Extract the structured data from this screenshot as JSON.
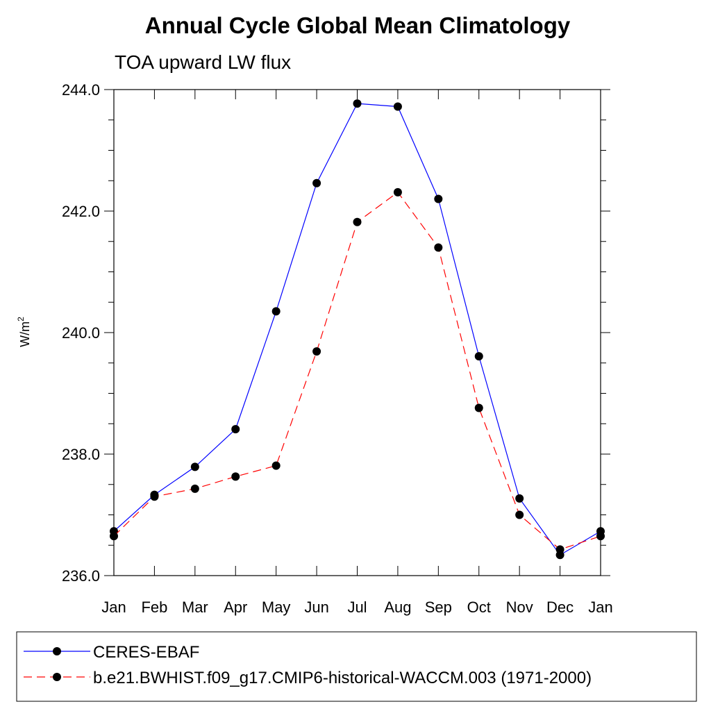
{
  "chart_data": {
    "type": "line",
    "title": "Annual Cycle Global Mean Climatology",
    "subtitle": "TOA upward LW flux",
    "ylabel_main": "W/m",
    "ylabel_sup": "2",
    "xlabel": "",
    "ylim": [
      236.0,
      244.0
    ],
    "yticks": [
      "236.0",
      "238.0",
      "240.0",
      "242.0",
      "244.0"
    ],
    "categories": [
      "Jan",
      "Feb",
      "Mar",
      "Apr",
      "May",
      "Jun",
      "Jul",
      "Aug",
      "Sep",
      "Oct",
      "Nov",
      "Dec",
      "Jan"
    ],
    "grid": false,
    "legend_position": "bottom",
    "series": [
      {
        "name": "CERES-EBAF",
        "color": "#0000ff",
        "dash": "solid",
        "values": [
          236.73,
          237.33,
          237.79,
          238.41,
          240.35,
          242.46,
          243.77,
          243.72,
          242.2,
          239.61,
          237.27,
          236.34,
          236.73
        ]
      },
      {
        "name": "b.e21.BWHIST.f09_g17.CMIP6-historical-WACCM.003 (1971-2000)",
        "color": "#ff0000",
        "dash": "dashed",
        "values": [
          236.65,
          237.3,
          237.43,
          237.63,
          237.81,
          239.69,
          241.82,
          242.31,
          241.4,
          238.76,
          237.0,
          236.43,
          236.65
        ]
      }
    ]
  }
}
